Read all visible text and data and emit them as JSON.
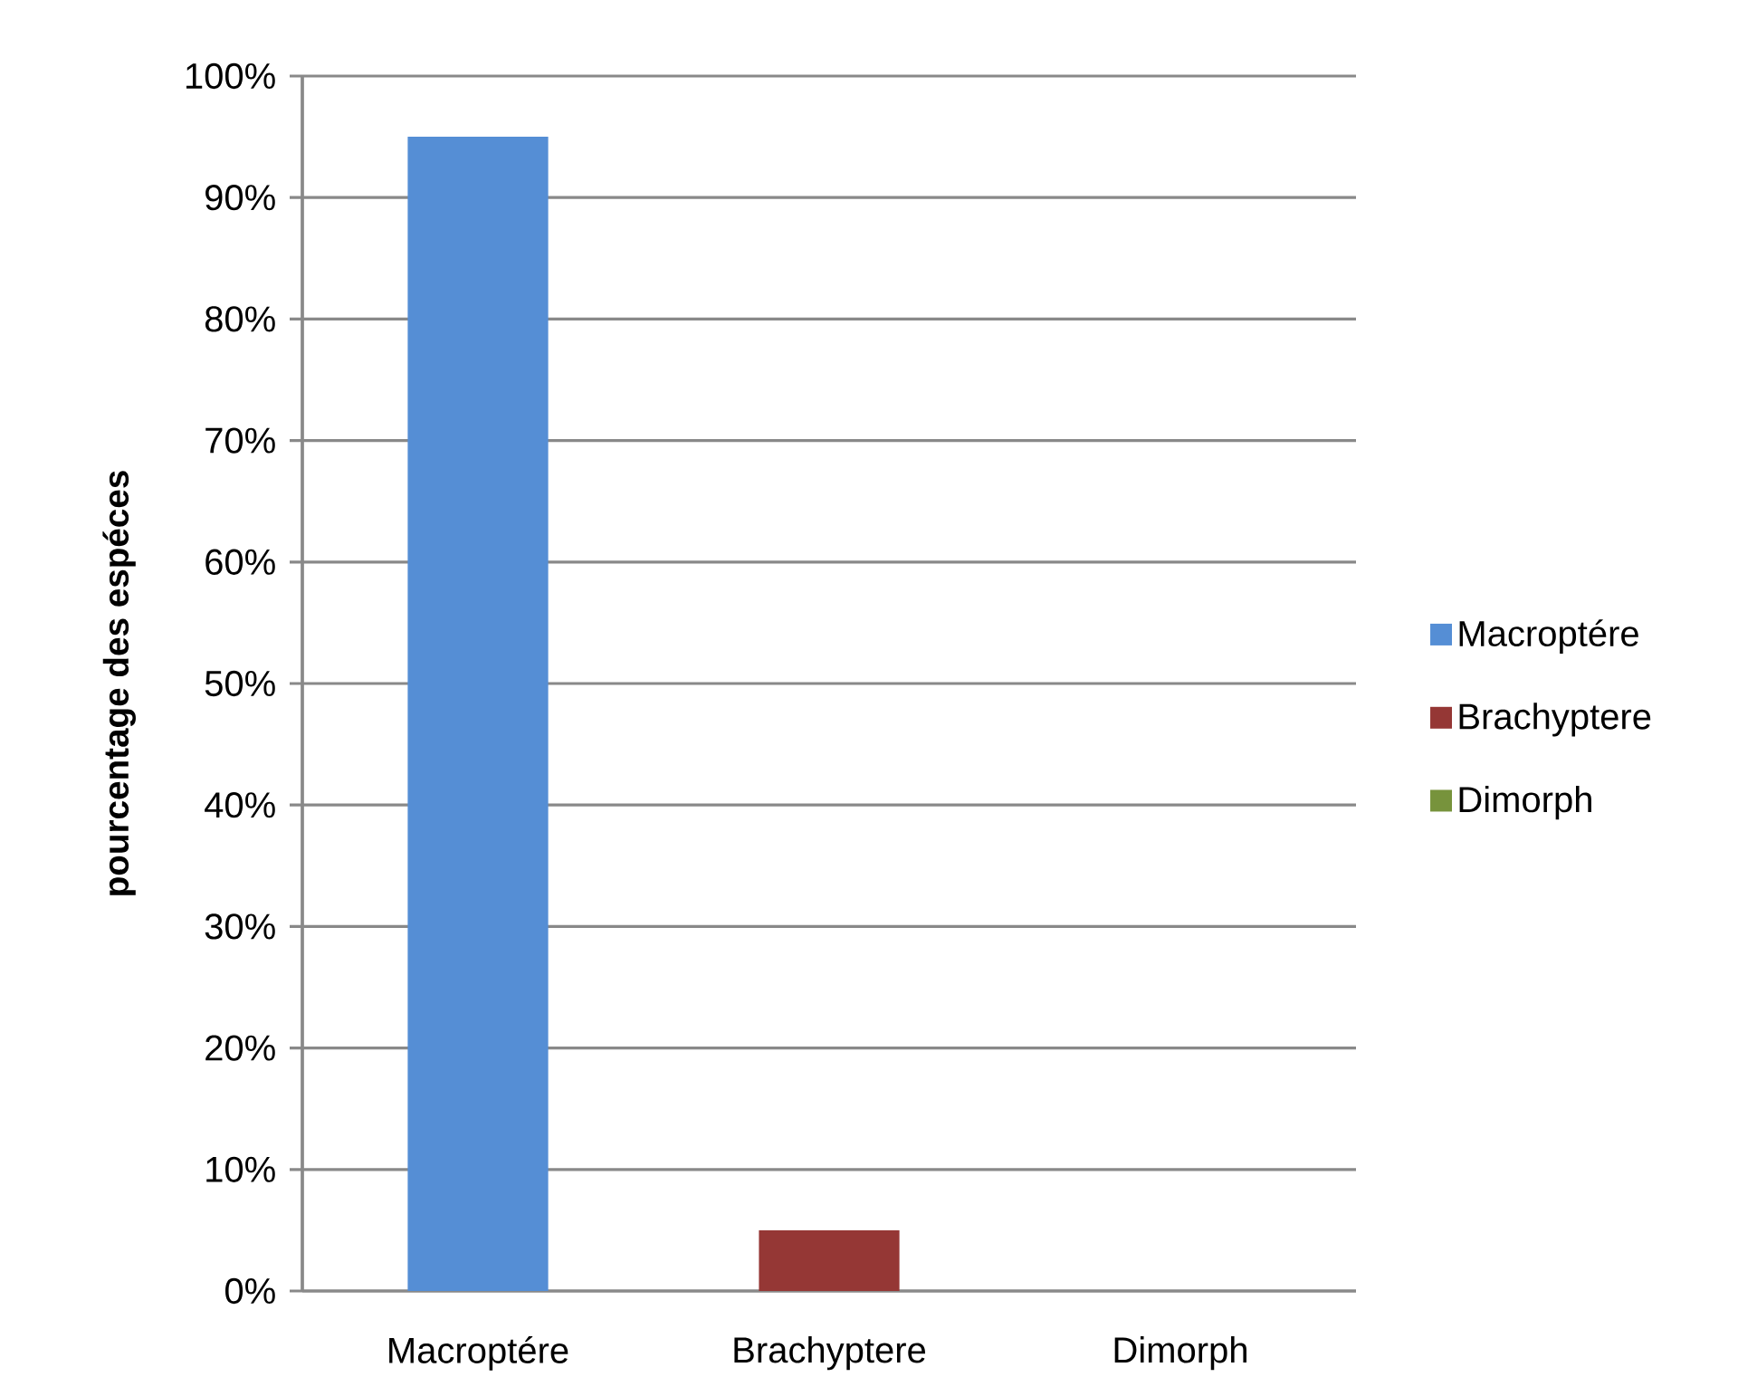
{
  "chart_data": {
    "type": "bar",
    "ylabel": "pourcentage des espéces",
    "categories": [
      "Macroptére",
      "Brachyptere",
      "Dimorph"
    ],
    "series": [
      {
        "name": "Macroptére",
        "color": "#558ed5",
        "values": [
          95,
          null,
          null
        ]
      },
      {
        "name": "Brachyptere",
        "color": "#953735",
        "values": [
          null,
          5,
          null
        ]
      },
      {
        "name": "Dimorph",
        "color": "#77933c",
        "values": [
          null,
          null,
          0
        ]
      }
    ],
    "ylim": [
      0,
      100
    ],
    "yticks": [
      {
        "value": 0,
        "label": "0%"
      },
      {
        "value": 10,
        "label": "10%"
      },
      {
        "value": 20,
        "label": "20%"
      },
      {
        "value": 30,
        "label": "30%"
      },
      {
        "value": 40,
        "label": "40%"
      },
      {
        "value": 50,
        "label": "50%"
      },
      {
        "value": 60,
        "label": "60%"
      },
      {
        "value": 70,
        "label": "70%"
      },
      {
        "value": 80,
        "label": "80%"
      },
      {
        "value": 90,
        "label": "90%"
      },
      {
        "value": 100,
        "label": "100%"
      }
    ],
    "grid": "y",
    "legend": "right"
  }
}
